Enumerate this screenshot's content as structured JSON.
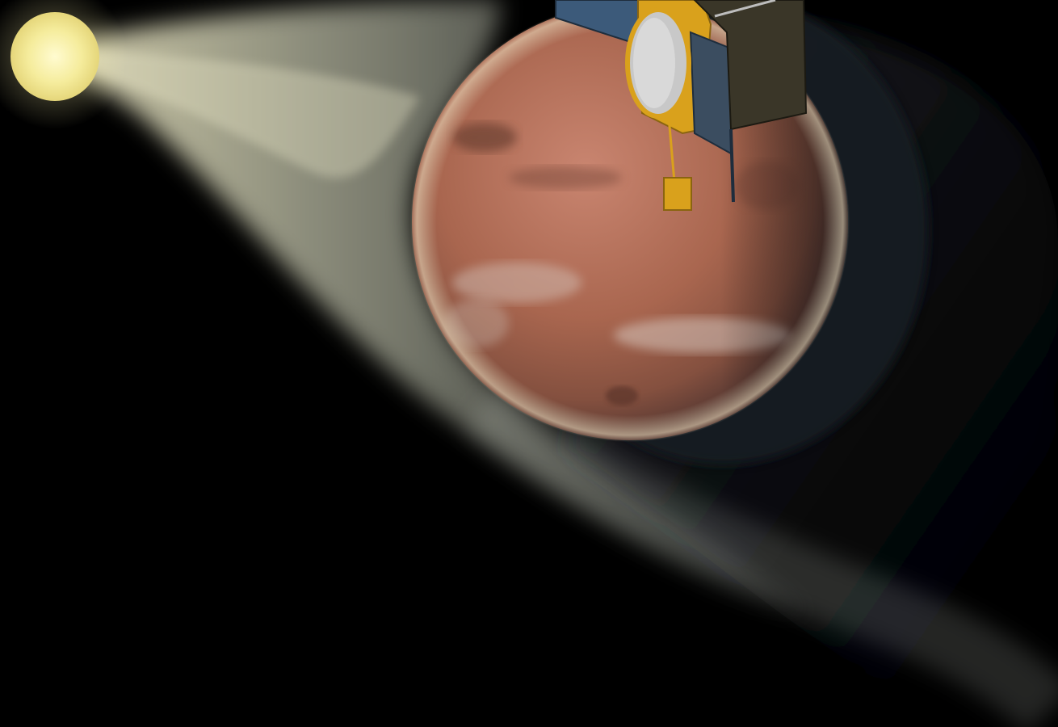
{
  "scene": {
    "subjects": [
      "sun",
      "solar-wind",
      "mars",
      "mars-shadow-tail",
      "spacecraft"
    ],
    "colors": {
      "space": "#000000",
      "sun": "#f6eea0",
      "solar_wind": "#e8e6c8",
      "mars_surface": "#b0705a",
      "mars_dark": "#6b3f33",
      "shadow": "#141a22",
      "panel_blue": "#3c5a7a",
      "gold_foil": "#d9a11c",
      "antenna": "#c8c8c8"
    }
  }
}
